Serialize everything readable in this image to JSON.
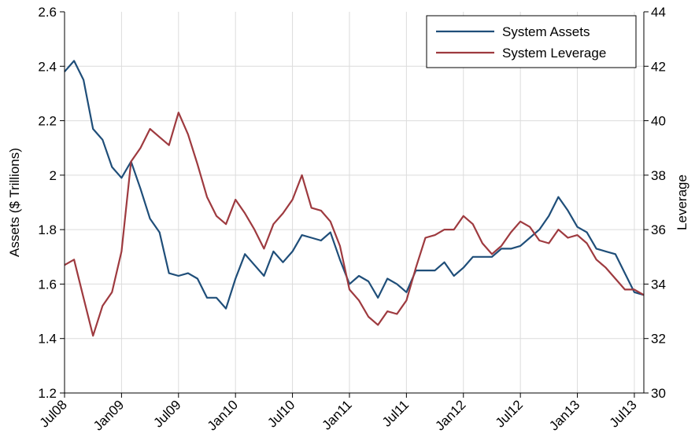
{
  "chart_data": {
    "type": "line",
    "x": [
      "Jul08",
      "Aug08",
      "Sep08",
      "Oct08",
      "Nov08",
      "Dec08",
      "Jan09",
      "Feb09",
      "Mar09",
      "Apr09",
      "May09",
      "Jun09",
      "Jul09",
      "Aug09",
      "Sep09",
      "Oct09",
      "Nov09",
      "Dec09",
      "Jan10",
      "Feb10",
      "Mar10",
      "Apr10",
      "May10",
      "Jun10",
      "Jul10",
      "Aug10",
      "Sep10",
      "Oct10",
      "Nov10",
      "Dec10",
      "Jan11",
      "Feb11",
      "Mar11",
      "Apr11",
      "May11",
      "Jun11",
      "Jul11",
      "Aug11",
      "Sep11",
      "Oct11",
      "Nov11",
      "Dec11",
      "Jan12",
      "Feb12",
      "Mar12",
      "Apr12",
      "May12",
      "Jun12",
      "Jul12",
      "Aug12",
      "Sep12",
      "Oct12",
      "Nov12",
      "Dec12",
      "Jan13",
      "Feb13",
      "Mar13",
      "Apr13",
      "May13",
      "Jun13",
      "Jul13",
      "Aug13"
    ],
    "x_tick_labels": [
      "Jul08",
      "Jan09",
      "Jul09",
      "Jan10",
      "Jul10",
      "Jan11",
      "Jul11",
      "Jan12",
      "Jul12",
      "Jan13",
      "Jul13"
    ],
    "ylabel": "Assets ($ Trillions)",
    "y2label": "Leverage",
    "ylim": [
      1.2,
      2.6
    ],
    "y2lim": [
      30,
      44
    ],
    "y_ticks": [
      "1.2",
      "1.4",
      "1.6",
      "1.8",
      "2",
      "2.2",
      "2.4",
      "2.6"
    ],
    "y2_ticks": [
      "30",
      "32",
      "34",
      "36",
      "38",
      "40",
      "42",
      "44"
    ],
    "grid": true,
    "legend_position": "top-right",
    "series": [
      {
        "name": "System Assets",
        "axis": "left",
        "color": "#1f4e79",
        "values": [
          2.38,
          2.42,
          2.35,
          2.17,
          2.13,
          2.03,
          1.99,
          2.05,
          1.95,
          1.84,
          1.79,
          1.64,
          1.63,
          1.64,
          1.62,
          1.55,
          1.55,
          1.51,
          1.62,
          1.71,
          1.67,
          1.63,
          1.72,
          1.68,
          1.72,
          1.78,
          1.77,
          1.76,
          1.79,
          1.69,
          1.6,
          1.63,
          1.61,
          1.55,
          1.62,
          1.6,
          1.57,
          1.65,
          1.65,
          1.65,
          1.68,
          1.63,
          1.66,
          1.7,
          1.7,
          1.7,
          1.73,
          1.73,
          1.74,
          1.77,
          1.8,
          1.85,
          1.92,
          1.87,
          1.81,
          1.79,
          1.73,
          1.72,
          1.71,
          1.64,
          1.57,
          1.56
        ]
      },
      {
        "name": "System Leverage",
        "axis": "right",
        "color": "#9e3a3f",
        "values": [
          34.7,
          34.9,
          33.5,
          32.1,
          33.2,
          33.7,
          35.2,
          38.5,
          39.0,
          39.7,
          39.4,
          39.1,
          40.3,
          39.5,
          38.4,
          37.2,
          36.5,
          36.2,
          37.1,
          36.6,
          36.0,
          35.3,
          36.2,
          36.6,
          37.1,
          38.0,
          36.8,
          36.7,
          36.3,
          35.4,
          33.8,
          33.4,
          32.8,
          32.5,
          33.0,
          32.9,
          33.4,
          34.6,
          35.7,
          35.8,
          36.0,
          36.0,
          36.5,
          36.2,
          35.5,
          35.1,
          35.4,
          35.9,
          36.3,
          36.1,
          35.6,
          35.5,
          36.0,
          35.7,
          35.8,
          35.5,
          34.9,
          34.6,
          34.2,
          33.8,
          33.8,
          33.6
        ]
      }
    ]
  }
}
